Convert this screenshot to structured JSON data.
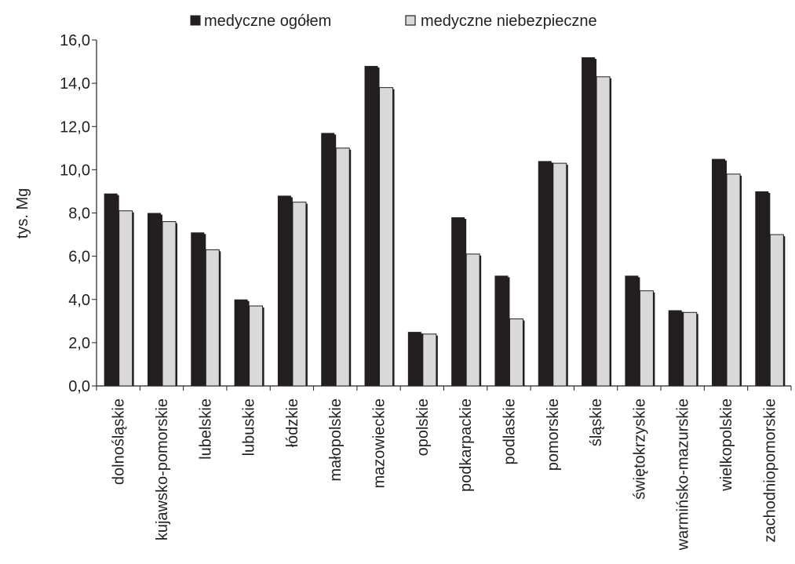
{
  "chart_data": {
    "type": "bar",
    "ylabel": "tys. Mg",
    "ylim": [
      0,
      16
    ],
    "y_ticks": [
      "0,0",
      "2,0",
      "4,0",
      "6,0",
      "8,0",
      "10,0",
      "12,0",
      "14,0",
      "16,0"
    ],
    "y_tick_values": [
      0,
      2,
      4,
      6,
      8,
      10,
      12,
      14,
      16
    ],
    "grid": false,
    "legend_position": "top",
    "categories": [
      "dolnośląskie",
      "kujawsko-pomorskie",
      "lubelskie",
      "lubuskie",
      "łódzkie",
      "małopolskie",
      "mazowieckie",
      "opolskie",
      "podkarpackie",
      "podlaskie",
      "pomorskie",
      "śląskie",
      "świętokrzyskie",
      "warmińsko-mazurskie",
      "wielkopolskie",
      "zachodniopomorskie"
    ],
    "series": [
      {
        "name": "medyczne ogółem",
        "color": "#231f20",
        "values": [
          8.9,
          8.0,
          7.1,
          4.0,
          8.8,
          11.7,
          14.8,
          2.5,
          7.8,
          5.1,
          10.4,
          15.2,
          5.1,
          3.5,
          10.5,
          9.0
        ]
      },
      {
        "name": "medyczne niebezpieczne",
        "color": "#d9d9da",
        "values": [
          8.1,
          7.6,
          6.3,
          3.7,
          8.5,
          11.0,
          13.8,
          2.4,
          6.1,
          3.1,
          10.3,
          14.3,
          4.4,
          3.4,
          9.8,
          7.0
        ]
      }
    ]
  }
}
